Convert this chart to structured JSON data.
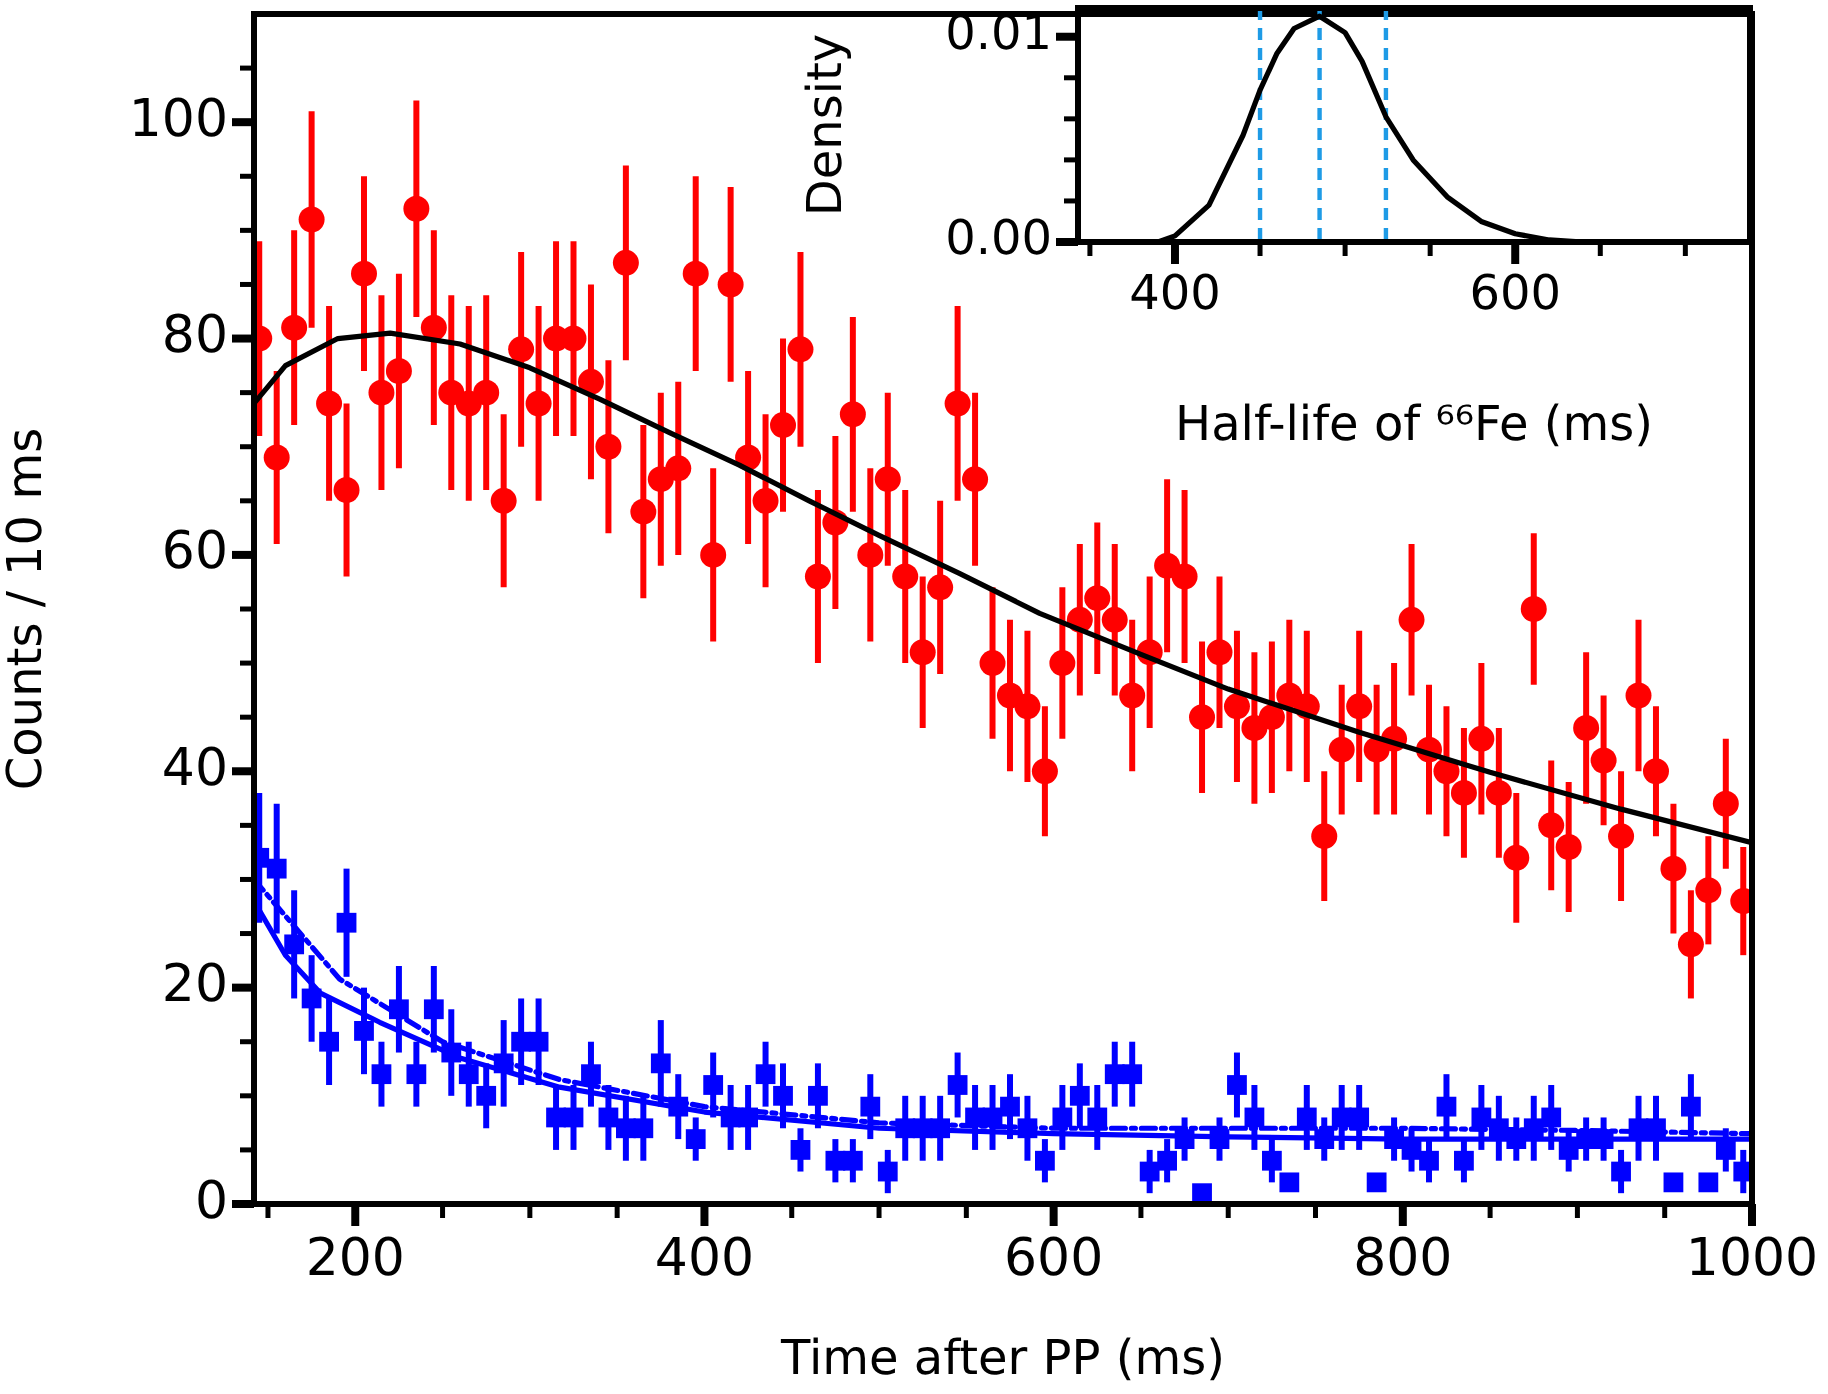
{
  "chart_data": [
    {
      "type": "scatter",
      "xlabel": "Time after PP (ms)",
      "ylabel": "Counts / 10 ms",
      "xlim": [
        142,
        1000
      ],
      "ylim": [
        0,
        110
      ],
      "xticks": [
        {
          "value": 150,
          "label": null
        },
        200,
        {
          "value": 250,
          "label": null
        },
        {
          "value": 300,
          "label": null
        },
        {
          "value": 350,
          "label": null
        },
        400,
        {
          "value": 450,
          "label": null
        },
        {
          "value": 500,
          "label": null
        },
        {
          "value": 550,
          "label": null
        },
        600,
        {
          "value": 650,
          "label": null
        },
        {
          "value": 700,
          "label": null
        },
        {
          "value": 750,
          "label": null
        },
        800,
        {
          "value": 850,
          "label": null
        },
        {
          "value": 900,
          "label": null
        },
        {
          "value": 950,
          "label": null
        },
        1000
      ],
      "yticks": [
        0,
        {
          "value": 5,
          "label": null
        },
        {
          "value": 10,
          "label": null
        },
        {
          "value": 15,
          "label": null
        },
        20,
        {
          "value": 25,
          "label": null
        },
        {
          "value": 30,
          "label": null
        },
        {
          "value": 35,
          "label": null
        },
        40,
        {
          "value": 45,
          "label": null
        },
        {
          "value": 50,
          "label": null
        },
        {
          "value": 55,
          "label": null
        },
        60,
        {
          "value": 65,
          "label": null
        },
        {
          "value": 70,
          "label": null
        },
        {
          "value": 75,
          "label": null
        },
        80,
        {
          "value": 85,
          "label": null
        },
        {
          "value": 90,
          "label": null
        },
        {
          "value": 95,
          "label": null
        },
        100,
        {
          "value": 105,
          "label": null
        }
      ],
      "x": [
        145,
        155,
        165,
        175,
        185,
        195,
        205,
        215,
        225,
        235,
        245,
        255,
        265,
        275,
        285,
        295,
        305,
        315,
        325,
        335,
        345,
        355,
        365,
        375,
        385,
        395,
        405,
        415,
        425,
        435,
        445,
        455,
        465,
        475,
        485,
        495,
        505,
        515,
        525,
        535,
        545,
        555,
        565,
        575,
        585,
        595,
        605,
        615,
        625,
        635,
        645,
        655,
        665,
        675,
        685,
        695,
        705,
        715,
        725,
        735,
        745,
        755,
        765,
        775,
        785,
        795,
        805,
        815,
        825,
        835,
        845,
        855,
        865,
        875,
        885,
        895,
        905,
        915,
        925,
        935,
        945,
        955,
        965,
        975,
        985,
        995
      ],
      "series": [
        {
          "color": "#ff0000",
          "marker": "circle",
          "values": [
            80,
            69,
            81,
            91,
            74,
            66,
            86,
            75,
            77,
            92,
            81,
            75,
            74,
            75,
            65,
            79,
            74,
            80,
            80,
            76,
            70,
            87,
            64,
            67,
            68,
            86,
            60,
            85,
            69,
            65,
            72,
            79,
            58,
            63,
            73,
            60,
            67,
            58,
            51,
            57,
            74,
            67,
            50,
            47,
            46,
            40,
            50,
            54,
            56,
            54,
            47,
            51,
            59,
            58,
            45,
            51,
            46,
            44,
            45,
            47,
            46,
            34,
            42,
            46,
            42,
            43,
            54,
            42,
            40,
            38,
            43,
            38,
            32,
            55,
            35,
            33,
            44,
            41,
            34,
            47,
            40,
            31,
            24,
            29,
            37,
            28
          ],
          "errors": [
            9,
            8,
            9,
            10,
            9,
            8,
            9,
            9,
            9,
            10,
            9,
            9,
            9,
            9,
            8,
            9,
            9,
            9,
            9,
            9,
            8,
            9,
            8,
            8,
            8,
            9,
            8,
            9,
            8,
            8,
            8,
            9,
            8,
            8,
            9,
            8,
            8,
            8,
            7,
            8,
            9,
            8,
            7,
            7,
            7,
            6,
            7,
            7,
            7,
            7,
            7,
            7,
            8,
            8,
            7,
            7,
            7,
            7,
            7,
            7,
            7,
            6,
            6,
            7,
            6,
            7,
            7,
            6,
            6,
            6,
            7,
            6,
            6,
            7,
            6,
            6,
            7,
            6,
            6,
            7,
            6,
            6,
            5,
            5,
            6,
            5
          ]
        },
        {
          "color": "#0000ff",
          "marker": "square",
          "values": [
            32,
            31,
            24,
            19,
            15,
            26,
            16,
            12,
            18,
            12,
            18,
            14,
            12,
            10,
            13,
            15,
            15,
            8,
            8,
            12,
            8,
            7,
            7,
            13,
            9,
            6,
            11,
            8,
            8,
            12,
            10,
            5,
            10,
            4,
            4,
            9,
            3,
            7,
            7,
            7,
            11,
            8,
            8,
            9,
            7,
            4,
            8,
            10,
            8,
            12,
            12,
            3,
            4,
            6,
            1,
            6,
            11,
            8,
            4,
            2,
            8,
            6,
            8,
            8,
            2,
            6,
            5,
            4,
            9,
            4,
            8,
            7,
            6,
            7,
            8,
            5,
            6,
            6,
            3,
            7,
            7,
            2,
            9,
            2,
            5,
            3
          ],
          "errors": [
            6,
            6,
            5,
            4,
            4,
            5,
            4,
            3,
            4,
            3,
            4,
            4,
            3,
            3,
            4,
            4,
            4,
            3,
            3,
            3,
            3,
            3,
            3,
            4,
            3,
            2,
            3,
            3,
            3,
            3,
            3,
            2,
            3,
            2,
            2,
            3,
            2,
            3,
            3,
            3,
            3,
            3,
            3,
            3,
            3,
            2,
            3,
            3,
            3,
            3,
            3,
            2,
            2,
            2,
            null,
            2,
            3,
            3,
            2,
            null,
            3,
            2,
            3,
            3,
            null,
            2,
            2,
            2,
            3,
            2,
            3,
            3,
            2,
            3,
            3,
            2,
            2,
            2,
            2,
            3,
            3,
            null,
            3,
            null,
            2,
            2
          ]
        },
        {
          "type": "line",
          "color": "#000000",
          "line_style": "solid",
          "marker": "none",
          "x": [
            142,
            160,
            190,
            220,
            260,
            300,
            340,
            380,
            420,
            460,
            500,
            546,
            592,
            650,
            700,
            775,
            850,
            925,
            1000
          ],
          "values": [
            74,
            77.5,
            80,
            80.5,
            79.5,
            77.3,
            74.4,
            71.3,
            68.3,
            65,
            61.8,
            58.3,
            54.6,
            50.8,
            47.6,
            43.6,
            39.9,
            36.5,
            33.4
          ]
        },
        {
          "type": "line",
          "color": "#0000ff",
          "line_style": "solid",
          "marker": "none",
          "x": [
            142,
            160,
            180,
            214,
            260,
            317,
            400,
            500,
            600,
            700,
            800,
            900,
            1000
          ],
          "values": [
            28,
            23,
            19.5,
            16.8,
            13.5,
            10.8,
            8.5,
            7,
            6.5,
            6.2,
            6,
            6,
            6
          ]
        },
        {
          "type": "line",
          "color": "#0000ff",
          "line_style": "dashed",
          "marker": "none",
          "x": [
            142,
            191,
            250,
            317,
            400,
            500,
            600,
            700,
            800,
            900,
            1000
          ],
          "values": [
            30,
            20.8,
            15,
            11.5,
            9,
            7.5,
            7,
            7,
            7,
            6.8,
            6.5
          ]
        }
      ]
    },
    {
      "type": "line",
      "xlabel": "Half-life of ⁶⁶Fe (ms)",
      "ylabel": "Density",
      "xlim": [
        343,
        738
      ],
      "ylim": [
        0,
        0.0114
      ],
      "xticks": [
        {
          "value": 350,
          "label": null
        },
        400,
        {
          "value": 450,
          "label": null
        },
        {
          "value": 500,
          "label": null
        },
        {
          "value": 550,
          "label": null
        },
        600,
        {
          "value": 650,
          "label": null
        },
        {
          "value": 700,
          "label": null
        }
      ],
      "yticks": [
        {
          "value": 0,
          "label": "0.00"
        },
        {
          "value": 0.002,
          "label": null
        },
        {
          "value": 0.004,
          "label": null
        },
        {
          "value": 0.006,
          "label": null
        },
        {
          "value": 0.008,
          "label": null
        },
        0.01
      ],
      "x": [
        390,
        400,
        420,
        440,
        450,
        460,
        470,
        485,
        500,
        510,
        524,
        540,
        560,
        580,
        600,
        620,
        640
      ],
      "series": [
        {
          "color": "#000000",
          "values": [
            0,
            0.0003,
            0.0018,
            0.0052,
            0.0074,
            0.0092,
            0.0104,
            0.011,
            0.0102,
            0.0088,
            0.0061,
            0.004,
            0.0022,
            0.001,
            0.0004,
            0.0001,
            0
          ]
        }
      ],
      "ref_lines": [
        {
          "axis": "x",
          "value": 450,
          "color": "#1e9be6",
          "line_style": "dashed"
        },
        {
          "axis": "x",
          "value": 485,
          "color": "#1e9be6",
          "line_style": "dashed"
        },
        {
          "axis": "x",
          "value": 524,
          "color": "#1e9be6",
          "line_style": "dashed"
        }
      ]
    }
  ]
}
